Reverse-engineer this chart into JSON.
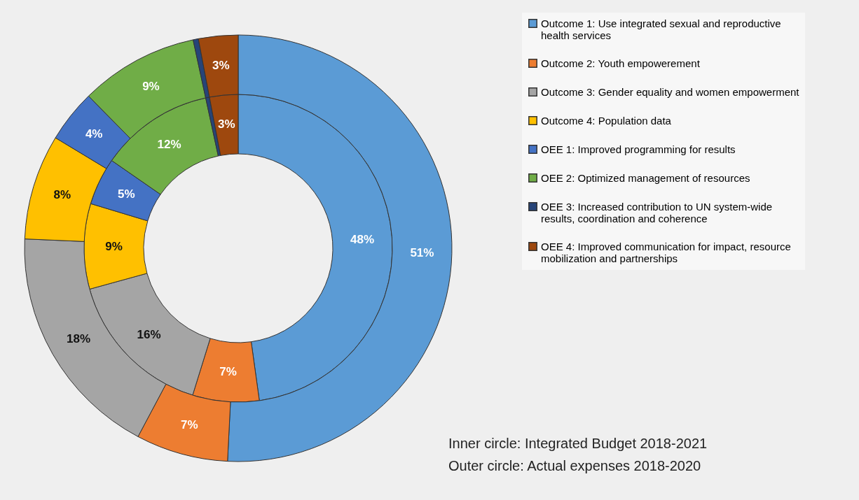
{
  "chart_data": {
    "type": "donut",
    "categories": [
      "Outcome 1: Use integrated sexual and reproductive health services",
      "Outcome 2: Youth empowerement",
      "Outcome 3: Gender equality and women empowerment",
      "Outcome 4: Population data",
      "OEE 1: Improved programming for results",
      "OEE 2: Optimized management of resources",
      "OEE 3: Increased contribution to UN system-wide results, coordination and coherence",
      "OEE 4: Improved communication for impact, resource mobilization and partnerships"
    ],
    "colors": [
      "#5b9bd5",
      "#ed7d31",
      "#a5a5a5",
      "#ffc000",
      "#4472c4",
      "#70ad47",
      "#264478",
      "#9e480e"
    ],
    "series": [
      {
        "values": [
          48,
          7,
          16,
          9,
          5,
          12,
          0.4,
          3
        ],
        "value_labels": [
          "48%",
          "7%",
          "16%",
          "9%",
          "5%",
          "12%",
          null,
          "3%"
        ]
      },
      {
        "values": [
          51,
          7,
          18,
          8,
          4,
          9,
          0.4,
          3
        ],
        "value_labels": [
          "51%",
          "7%",
          "18%",
          "8%",
          "4%",
          "9%",
          null,
          "3%"
        ]
      }
    ],
    "legend": "right",
    "annotations": [
      "Inner circle: Integrated Budget 2018-2021",
      "Outer circle: Actual expenses 2018-2020"
    ]
  }
}
